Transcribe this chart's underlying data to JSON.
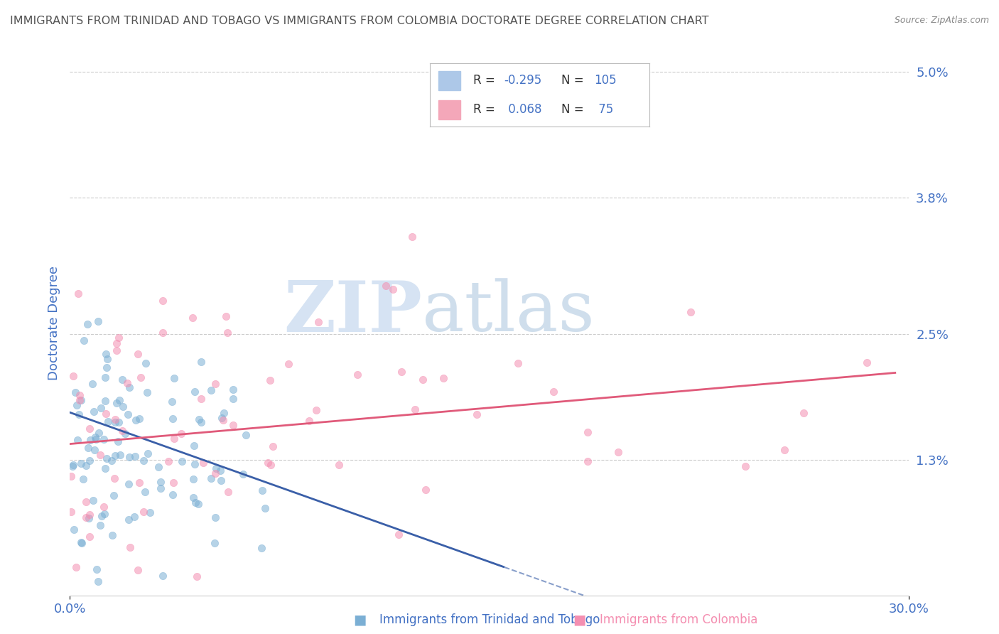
{
  "title": "IMMIGRANTS FROM TRINIDAD AND TOBAGO VS IMMIGRANTS FROM COLOMBIA DOCTORATE DEGREE CORRELATION CHART",
  "source": "Source: ZipAtlas.com",
  "xlabel_blue": "Immigrants from Trinidad and Tobago",
  "xlabel_pink": "Immigrants from Colombia",
  "ylabel": "Doctorate Degree",
  "xlim": [
    0.0,
    0.3
  ],
  "ylim": [
    0.0,
    0.052
  ],
  "yticks": [
    0.013,
    0.025,
    0.038,
    0.05
  ],
  "ytick_labels": [
    "1.3%",
    "2.5%",
    "3.8%",
    "5.0%"
  ],
  "xtick_labels": [
    "0.0%",
    "30.0%"
  ],
  "blue_R": -0.295,
  "blue_N": 105,
  "pink_R": 0.068,
  "pink_N": 75,
  "blue_color": "#adc8e8",
  "blue_line_color": "#3a5fa8",
  "pink_color": "#f4a7b9",
  "pink_line_color": "#e05a7a",
  "blue_dot_color": "#7bafd4",
  "pink_dot_color": "#f48fb1",
  "background_color": "#ffffff",
  "grid_color": "#cccccc",
  "title_color": "#555555",
  "axis_label_color": "#4472c4",
  "watermark_zip": "ZIP",
  "watermark_atlas": "atlas",
  "watermark_color_zip": "#c8d8ec",
  "watermark_color_atlas": "#b8cce0"
}
